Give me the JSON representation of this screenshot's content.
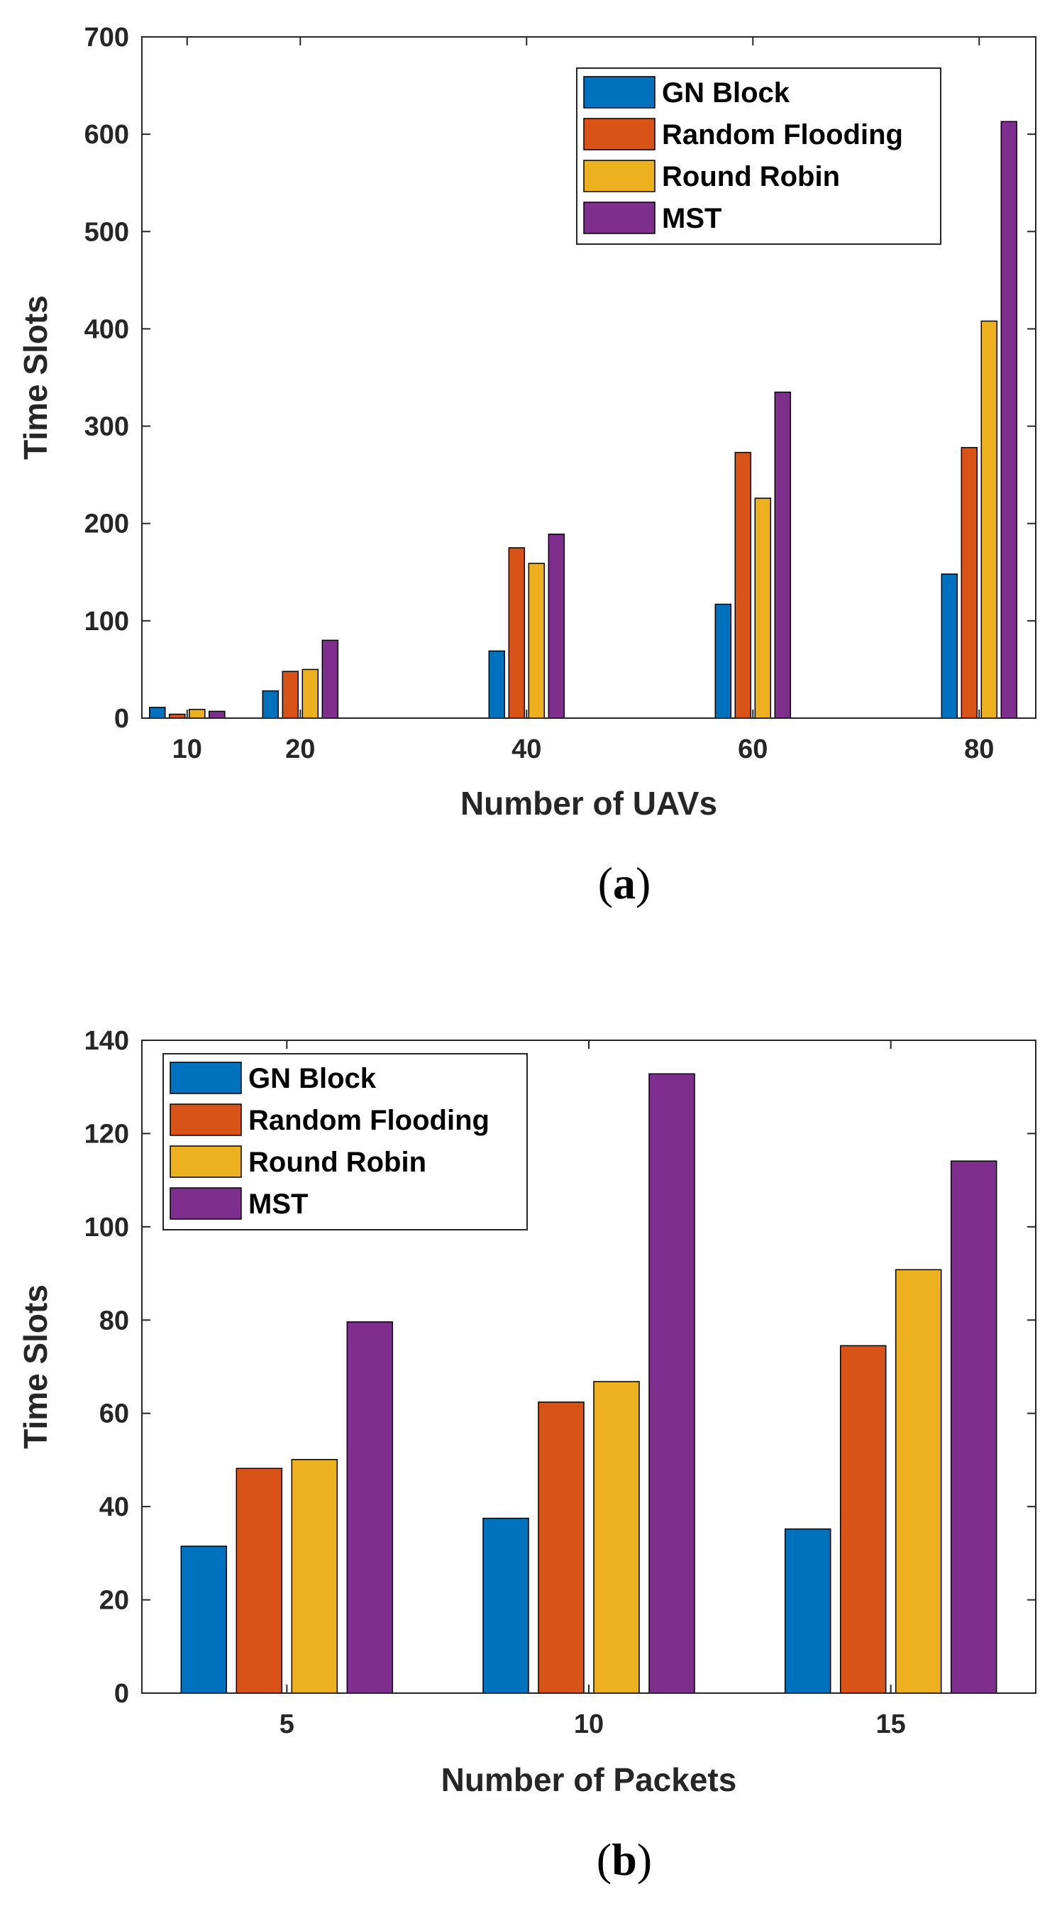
{
  "chart_data": [
    {
      "type": "bar",
      "caption_open": "(",
      "caption_letter": "a",
      "caption_close": ")",
      "title": "",
      "xlabel": "Number of UAVs",
      "ylabel": "Time Slots",
      "categories": [
        "10",
        "20",
        "40",
        "60",
        "80"
      ],
      "x": [
        10,
        20,
        40,
        60,
        80
      ],
      "xlim": [
        6,
        85
      ],
      "ylim": [
        0,
        700
      ],
      "yticks": [
        0,
        100,
        200,
        300,
        400,
        500,
        600,
        700
      ],
      "legend_position": "top-right",
      "series": [
        {
          "name": "GN Block",
          "color": "#0072BD",
          "values": [
            11,
            28,
            69,
            117,
            148
          ]
        },
        {
          "name": "Random Flooding",
          "color": "#D95319",
          "values": [
            4,
            48,
            175,
            273,
            278
          ]
        },
        {
          "name": "Round Robin",
          "color": "#EDB120",
          "values": [
            9,
            50,
            159,
            226,
            408
          ]
        },
        {
          "name": "MST",
          "color": "#7E2F8E",
          "values": [
            7,
            80,
            189,
            335,
            613
          ]
        }
      ]
    },
    {
      "type": "bar",
      "caption_open": "(",
      "caption_letter": "b",
      "caption_close": ")",
      "title": "",
      "xlabel": "Number of Packets",
      "ylabel": "Time Slots",
      "categories": [
        "5",
        "10",
        "15"
      ],
      "x": [
        5,
        10,
        15
      ],
      "xlim": [
        2.6,
        17.4
      ],
      "ylim": [
        0,
        140
      ],
      "yticks": [
        0,
        20,
        40,
        60,
        80,
        100,
        120,
        140
      ],
      "legend_position": "top-left",
      "series": [
        {
          "name": "GN Block",
          "color": "#0072BD",
          "values": [
            31.5,
            37.5,
            35.2
          ]
        },
        {
          "name": "Random Flooding",
          "color": "#D95319",
          "values": [
            48.2,
            62.4,
            74.5
          ]
        },
        {
          "name": "Round Robin",
          "color": "#EDB120",
          "values": [
            50.1,
            66.8,
            90.8
          ]
        },
        {
          "name": "MST",
          "color": "#7E2F8E",
          "values": [
            79.6,
            132.8,
            114.1
          ]
        }
      ]
    }
  ]
}
